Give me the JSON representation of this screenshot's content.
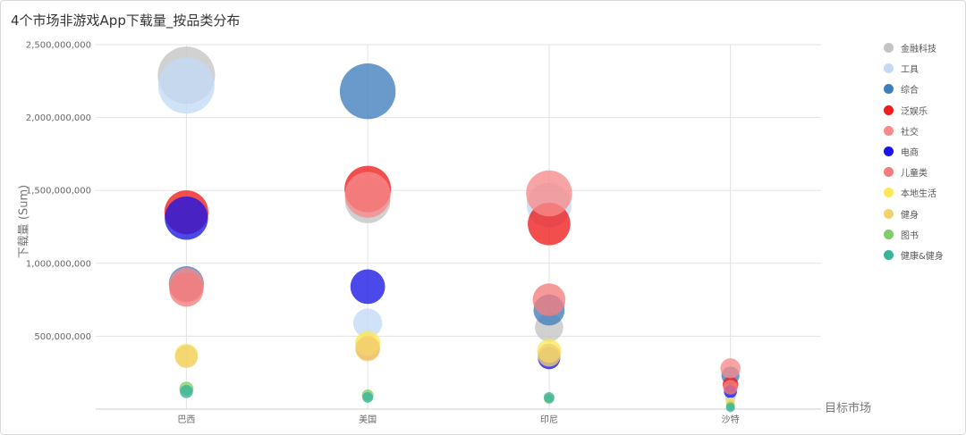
{
  "chart_data": {
    "type": "scatter",
    "title": "4个市场非游戏App下载量_按品类分布",
    "xlabel": "目标市场",
    "ylabel": "下载量 (Sum)",
    "categories": [
      "巴西",
      "美国",
      "印尼",
      "沙特"
    ],
    "ylim": [
      0,
      2500000000
    ],
    "yticks": [
      {
        "value": 500000000,
        "label": "500,000,000"
      },
      {
        "value": 1000000000,
        "label": "1,000,000,000"
      },
      {
        "value": 1500000000,
        "label": "1,500,000,000"
      },
      {
        "value": 2000000000,
        "label": "2,000,000,000"
      },
      {
        "value": 2500000000,
        "label": "2,500,000,000"
      }
    ],
    "grid": true,
    "legend_position": "right",
    "series": [
      {
        "name": "金融科技",
        "color": "#c4c4c4",
        "values": [
          2290000000,
          1430000000,
          560000000,
          60000000
        ]
      },
      {
        "name": "工具",
        "color": "#c2daf5",
        "values": [
          2220000000,
          590000000,
          1400000000,
          80000000
        ]
      },
      {
        "name": "综合",
        "color": "#3f7ebd",
        "values": [
          860000000,
          2180000000,
          680000000,
          230000000
        ]
      },
      {
        "name": "泛娱乐",
        "color": "#ee1c1c",
        "values": [
          1350000000,
          1510000000,
          1270000000,
          170000000
        ]
      },
      {
        "name": "社交",
        "color": "#f78a8a",
        "values": [
          850000000,
          1470000000,
          1480000000,
          280000000
        ]
      },
      {
        "name": "电商",
        "color": "#1a16e6",
        "values": [
          1310000000,
          840000000,
          350000000,
          120000000
        ]
      },
      {
        "name": "儿童类",
        "color": "#f47c7c",
        "values": [
          820000000,
          420000000,
          750000000,
          150000000
        ]
      },
      {
        "name": "本地生活",
        "color": "#fbe85b",
        "values": [
          370000000,
          450000000,
          400000000,
          50000000
        ]
      },
      {
        "name": "健身",
        "color": "#f1d06e",
        "values": [
          360000000,
          410000000,
          370000000,
          40000000
        ]
      },
      {
        "name": "图书",
        "color": "#7fcc6b",
        "values": [
          140000000,
          95000000,
          70000000,
          20000000
        ]
      },
      {
        "name": "健康&健身",
        "color": "#39b39a",
        "values": [
          120000000,
          80000000,
          80000000,
          10000000
        ]
      }
    ]
  }
}
